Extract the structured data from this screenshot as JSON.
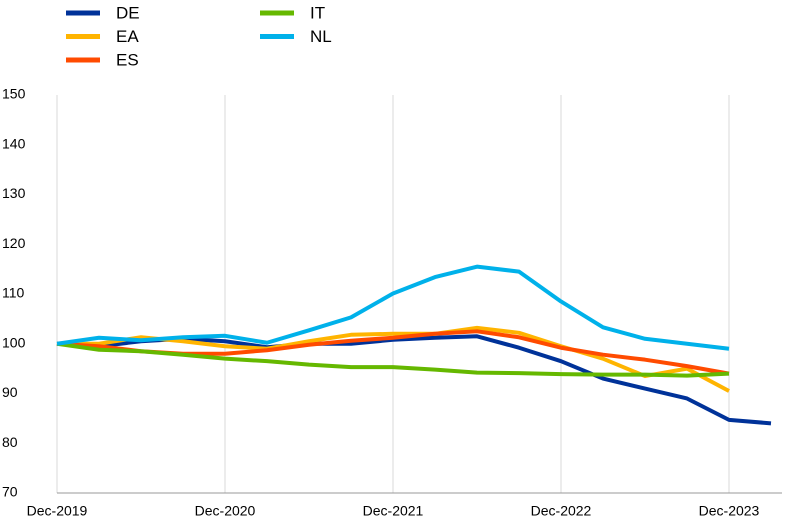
{
  "chart_data": {
    "type": "line",
    "categories": [
      "Dec-2019",
      null,
      null,
      null,
      "Dec-2020",
      null,
      null,
      null,
      "Dec-2021",
      null,
      null,
      null,
      "Dec-2022",
      null,
      null,
      null,
      "Dec-2023",
      null
    ],
    "series": [
      {
        "name": "DE",
        "color": "#003299",
        "values": [
          100,
          99.5,
          100.5,
          101,
          100.5,
          99.3,
          100,
          100,
          100.8,
          101.2,
          101.5,
          99.2,
          96.5,
          93,
          91,
          89,
          84.7,
          84
        ]
      },
      {
        "name": "EA",
        "color": "#ffb400",
        "values": [
          100,
          100,
          101.3,
          100.5,
          99.5,
          99,
          100.5,
          101.8,
          102,
          102,
          103.2,
          102.2,
          99.5,
          97,
          93.5,
          95,
          90.5,
          null
        ]
      },
      {
        "name": "ES",
        "color": "#ff4b00",
        "values": [
          100,
          99.5,
          98.5,
          98,
          98,
          98.7,
          99.8,
          100.6,
          101.2,
          102,
          102.5,
          101.3,
          99.2,
          97.8,
          96.8,
          95.5,
          94,
          null
        ]
      },
      {
        "name": "IT",
        "color": "#65b800",
        "values": [
          100,
          98.8,
          98.5,
          97.8,
          97,
          96.5,
          95.8,
          95.3,
          95.3,
          94.8,
          94.2,
          94.1,
          93.9,
          93.8,
          93.8,
          93.6,
          94,
          null
        ]
      },
      {
        "name": "NL",
        "color": "#00b1ea",
        "values": [
          100,
          101.2,
          100.7,
          101.3,
          101.6,
          100.2,
          102.7,
          105.3,
          110.1,
          113.4,
          115.5,
          114.5,
          108.5,
          103.3,
          101,
          100,
          99,
          null
        ]
      }
    ],
    "ylim": [
      70,
      150
    ],
    "yticks": [
      70,
      80,
      90,
      100,
      110,
      120,
      130,
      140,
      150
    ],
    "grid": "x",
    "legend": "top-left"
  }
}
